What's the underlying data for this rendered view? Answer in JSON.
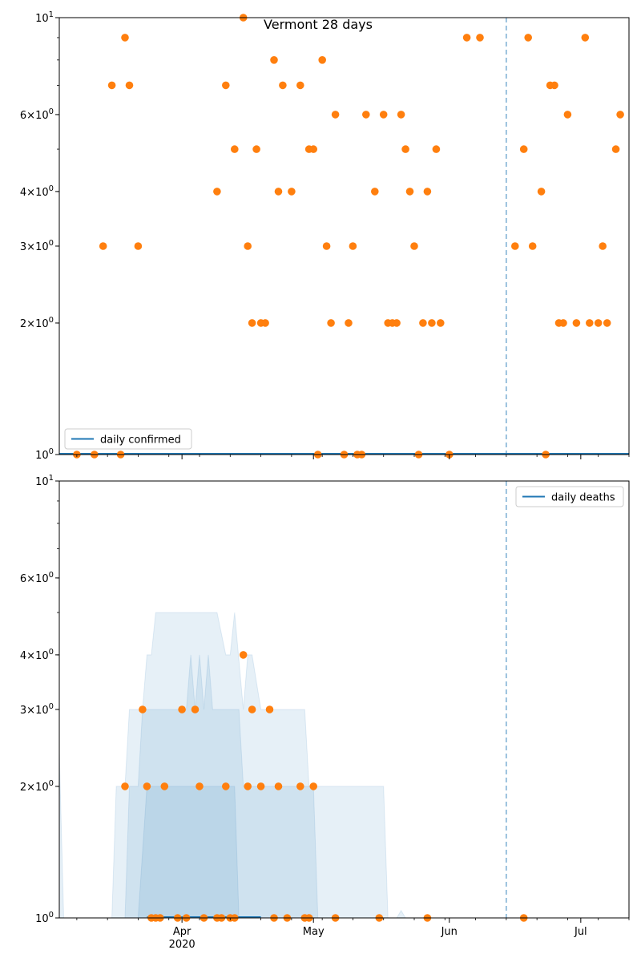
{
  "figure": {
    "title": "Vermont 28 days"
  },
  "colors": {
    "line": "#1f77b4",
    "points": "#ff7f0e",
    "band": "#1f77b4"
  },
  "chart_data": [
    {
      "type": "scatter",
      "title": "Vermont 28 days",
      "y_scale": "log",
      "ylim": [
        1,
        10
      ],
      "xlim": [
        "2020-03-04",
        "2020-07-12"
      ],
      "y_ticks": [
        {
          "value": 1,
          "label": "10^0"
        },
        {
          "value": 2,
          "label": "2×10^0"
        },
        {
          "value": 3,
          "label": "3×10^0"
        },
        {
          "value": 4,
          "label": "4×10^0"
        },
        {
          "value": 6,
          "label": "6×10^0"
        },
        {
          "value": 10,
          "label": "10^1"
        }
      ],
      "vline": "2020-06-14",
      "legend": {
        "position": "lower-left",
        "entries": [
          "daily confirmed"
        ]
      },
      "series": [
        {
          "name": "daily confirmed",
          "kind": "line",
          "points": [
            [
              "2020-03-04",
              1
            ],
            [
              "2020-07-12",
              1
            ]
          ]
        },
        {
          "kind": "scatter",
          "points": [
            [
              "2020-03-08",
              1
            ],
            [
              "2020-03-12",
              1
            ],
            [
              "2020-03-14",
              3
            ],
            [
              "2020-03-16",
              7
            ],
            [
              "2020-03-18",
              1
            ],
            [
              "2020-03-19",
              9
            ],
            [
              "2020-03-20",
              7
            ],
            [
              "2020-03-22",
              3
            ],
            [
              "2020-04-09",
              4
            ],
            [
              "2020-04-11",
              7
            ],
            [
              "2020-04-13",
              5
            ],
            [
              "2020-04-15",
              10
            ],
            [
              "2020-04-16",
              3
            ],
            [
              "2020-04-17",
              2
            ],
            [
              "2020-04-18",
              5
            ],
            [
              "2020-04-19",
              2
            ],
            [
              "2020-04-20",
              2
            ],
            [
              "2020-04-22",
              8
            ],
            [
              "2020-04-23",
              4
            ],
            [
              "2020-04-24",
              7
            ],
            [
              "2020-04-26",
              4
            ],
            [
              "2020-04-28",
              7
            ],
            [
              "2020-04-30",
              5
            ],
            [
              "2020-05-01",
              5
            ],
            [
              "2020-05-02",
              1
            ],
            [
              "2020-05-03",
              8
            ],
            [
              "2020-05-04",
              3
            ],
            [
              "2020-05-05",
              2
            ],
            [
              "2020-05-06",
              6
            ],
            [
              "2020-05-08",
              1
            ],
            [
              "2020-05-09",
              2
            ],
            [
              "2020-05-10",
              3
            ],
            [
              "2020-05-11",
              1
            ],
            [
              "2020-05-12",
              1
            ],
            [
              "2020-05-13",
              6
            ],
            [
              "2020-05-15",
              4
            ],
            [
              "2020-05-17",
              6
            ],
            [
              "2020-05-18",
              2
            ],
            [
              "2020-05-19",
              2
            ],
            [
              "2020-05-20",
              2
            ],
            [
              "2020-05-21",
              6
            ],
            [
              "2020-05-22",
              5
            ],
            [
              "2020-05-23",
              4
            ],
            [
              "2020-05-24",
              3
            ],
            [
              "2020-05-25",
              1
            ],
            [
              "2020-05-26",
              2
            ],
            [
              "2020-05-27",
              4
            ],
            [
              "2020-05-28",
              2
            ],
            [
              "2020-05-29",
              5
            ],
            [
              "2020-05-30",
              2
            ],
            [
              "2020-06-01",
              1
            ],
            [
              "2020-06-05",
              9
            ],
            [
              "2020-06-08",
              9
            ],
            [
              "2020-06-16",
              3
            ],
            [
              "2020-06-18",
              5
            ],
            [
              "2020-06-19",
              9
            ],
            [
              "2020-06-20",
              3
            ],
            [
              "2020-06-22",
              4
            ],
            [
              "2020-06-23",
              1
            ],
            [
              "2020-06-24",
              7
            ],
            [
              "2020-06-25",
              7
            ],
            [
              "2020-06-26",
              2
            ],
            [
              "2020-06-27",
              2
            ],
            [
              "2020-06-28",
              6
            ],
            [
              "2020-06-30",
              2
            ],
            [
              "2020-07-02",
              9
            ],
            [
              "2020-07-03",
              2
            ],
            [
              "2020-07-05",
              2
            ],
            [
              "2020-07-06",
              3
            ],
            [
              "2020-07-07",
              2
            ],
            [
              "2020-07-09",
              5
            ],
            [
              "2020-07-10",
              6
            ]
          ]
        }
      ]
    },
    {
      "type": "scatter",
      "y_scale": "log",
      "ylim": [
        1,
        10
      ],
      "xlim": [
        "2020-03-04",
        "2020-07-12"
      ],
      "x_ticks": [
        {
          "date": "2020-04-01",
          "label": "Apr"
        },
        {
          "date": "2020-05-01",
          "label": "May"
        },
        {
          "date": "2020-06-01",
          "label": "Jun"
        },
        {
          "date": "2020-07-01",
          "label": "Jul"
        }
      ],
      "x_year_label": "2020",
      "y_ticks": [
        {
          "value": 1,
          "label": "10^0"
        },
        {
          "value": 2,
          "label": "2×10^0"
        },
        {
          "value": 3,
          "label": "3×10^0"
        },
        {
          "value": 4,
          "label": "4×10^0"
        },
        {
          "value": 6,
          "label": "6×10^0"
        },
        {
          "value": 10,
          "label": "10^1"
        }
      ],
      "vline": "2020-06-14",
      "legend": {
        "position": "top-right",
        "entries": [
          "daily deaths"
        ]
      },
      "bands": [
        [
          [
            "2020-03-04",
            2.4
          ],
          [
            "2020-03-05",
            1
          ],
          [
            "2020-03-16",
            1
          ],
          [
            "2020-03-17",
            2
          ],
          [
            "2020-03-19",
            2
          ],
          [
            "2020-03-20",
            3
          ],
          [
            "2020-03-23",
            3
          ],
          [
            "2020-03-24",
            4
          ],
          [
            "2020-03-25",
            4
          ],
          [
            "2020-03-26",
            5
          ],
          [
            "2020-04-09",
            5
          ],
          [
            "2020-04-11",
            4
          ],
          [
            "2020-04-12",
            4
          ],
          [
            "2020-04-13",
            5
          ],
          [
            "2020-04-15",
            3
          ],
          [
            "2020-04-16",
            4
          ],
          [
            "2020-04-17",
            4
          ],
          [
            "2020-04-19",
            3
          ],
          [
            "2020-04-29",
            3
          ],
          [
            "2020-04-30",
            2
          ],
          [
            "2020-05-17",
            2
          ],
          [
            "2020-05-18",
            1
          ],
          [
            "2020-05-20",
            1
          ],
          [
            "2020-05-21",
            1.04
          ],
          [
            "2020-05-22",
            1
          ]
        ],
        [
          [
            "2020-03-19",
            1
          ],
          [
            "2020-03-20",
            2
          ],
          [
            "2020-03-22",
            2
          ],
          [
            "2020-03-23",
            3
          ],
          [
            "2020-03-24",
            3
          ],
          [
            "2020-03-25",
            3
          ],
          [
            "2020-04-02",
            3
          ],
          [
            "2020-04-03",
            4
          ],
          [
            "2020-04-04",
            3
          ],
          [
            "2020-04-05",
            4
          ],
          [
            "2020-04-06",
            3
          ],
          [
            "2020-04-07",
            4
          ],
          [
            "2020-04-08",
            3
          ],
          [
            "2020-04-10",
            3
          ],
          [
            "2020-04-14",
            3
          ],
          [
            "2020-04-15",
            2
          ],
          [
            "2020-05-01",
            2
          ],
          [
            "2020-05-02",
            1
          ]
        ],
        [
          [
            "2020-03-22",
            1
          ],
          [
            "2020-03-24",
            2
          ],
          [
            "2020-04-06",
            2
          ],
          [
            "2020-04-13",
            2
          ],
          [
            "2020-04-14",
            1
          ]
        ]
      ],
      "series": [
        {
          "name": "daily deaths",
          "kind": "line",
          "points": [
            [
              "2020-03-24",
              1
            ],
            [
              "2020-04-19",
              1
            ]
          ]
        },
        {
          "kind": "scatter",
          "points": [
            [
              "2020-03-19",
              2
            ],
            [
              "2020-03-23",
              3
            ],
            [
              "2020-03-24",
              2
            ],
            [
              "2020-03-25",
              1
            ],
            [
              "2020-03-26",
              1
            ],
            [
              "2020-03-27",
              1
            ],
            [
              "2020-03-28",
              2
            ],
            [
              "2020-03-31",
              1
            ],
            [
              "2020-04-01",
              3
            ],
            [
              "2020-04-02",
              1
            ],
            [
              "2020-04-04",
              3
            ],
            [
              "2020-04-05",
              2
            ],
            [
              "2020-04-06",
              1
            ],
            [
              "2020-04-09",
              1
            ],
            [
              "2020-04-10",
              1
            ],
            [
              "2020-04-11",
              2
            ],
            [
              "2020-04-12",
              1
            ],
            [
              "2020-04-13",
              1
            ],
            [
              "2020-04-15",
              4
            ],
            [
              "2020-04-16",
              2
            ],
            [
              "2020-04-17",
              3
            ],
            [
              "2020-04-19",
              2
            ],
            [
              "2020-04-21",
              3
            ],
            [
              "2020-04-22",
              1
            ],
            [
              "2020-04-23",
              2
            ],
            [
              "2020-04-25",
              1
            ],
            [
              "2020-04-28",
              2
            ],
            [
              "2020-04-29",
              1
            ],
            [
              "2020-04-30",
              1
            ],
            [
              "2020-05-01",
              2
            ],
            [
              "2020-05-06",
              1
            ],
            [
              "2020-05-16",
              1
            ],
            [
              "2020-05-27",
              1
            ],
            [
              "2020-06-18",
              1
            ]
          ]
        }
      ]
    }
  ]
}
